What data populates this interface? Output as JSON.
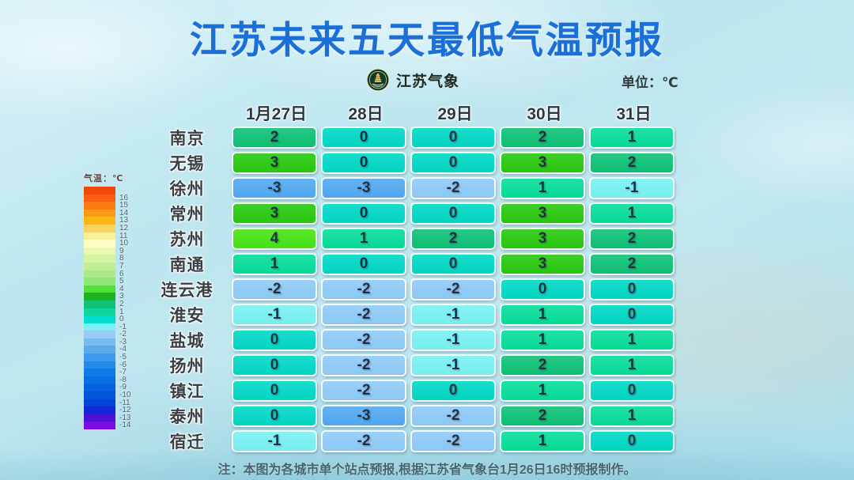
{
  "title": "江苏未来五天最低气温预报",
  "brand": {
    "logo_icon": "jiangsu-meteorology-emblem",
    "label": "江苏气象"
  },
  "unit_label": "单位：℃",
  "note": "注：本图为各城市单个站点预报,根据江苏省气象台1月26日16时预报制作。",
  "accent_colors": {
    "title_blue": "#1a6fd8",
    "header_text": "#2d3842",
    "cell_text": "#1d3142"
  },
  "chart_data": {
    "type": "heatmap",
    "title": "江苏未来五天最低气温预报",
    "unit": "℃",
    "columns": [
      "1月27日",
      "28日",
      "29日",
      "30日",
      "31日"
    ],
    "rows": [
      {
        "city": "南京",
        "values": [
          2,
          0,
          0,
          2,
          1
        ]
      },
      {
        "city": "无锡",
        "values": [
          3,
          0,
          0,
          3,
          2
        ]
      },
      {
        "city": "徐州",
        "values": [
          -3,
          -3,
          -2,
          1,
          -1
        ]
      },
      {
        "city": "常州",
        "values": [
          3,
          0,
          0,
          3,
          1
        ]
      },
      {
        "city": "苏州",
        "values": [
          4,
          1,
          2,
          3,
          2
        ]
      },
      {
        "city": "南通",
        "values": [
          1,
          0,
          0,
          3,
          2
        ]
      },
      {
        "city": "连云港",
        "values": [
          -2,
          -2,
          -2,
          0,
          0
        ]
      },
      {
        "city": "淮安",
        "values": [
          -1,
          -2,
          -1,
          1,
          0
        ]
      },
      {
        "city": "盐城",
        "values": [
          0,
          -2,
          -1,
          1,
          1
        ]
      },
      {
        "city": "扬州",
        "values": [
          0,
          -2,
          -1,
          2,
          1
        ]
      },
      {
        "city": "镇江",
        "values": [
          0,
          -2,
          0,
          1,
          0
        ]
      },
      {
        "city": "泰州",
        "values": [
          0,
          -3,
          -2,
          2,
          1
        ]
      },
      {
        "city": "宿迁",
        "values": [
          -1,
          -2,
          -2,
          1,
          0
        ]
      }
    ],
    "value_colors": {
      "4": "#46e414",
      "3": "#28c90f",
      "2": "#0dc176",
      "1": "#06dd99",
      "0": "#01d8c6",
      "-1": "#79f1f3",
      "-2": "#8ecaf7",
      "-3": "#52a9f2"
    },
    "legend": {
      "title": "气温：℃",
      "entries": [
        {
          "label": "",
          "color": "#f3480c"
        },
        {
          "label": "16",
          "color": "#fa5f0f"
        },
        {
          "label": "15",
          "color": "#fc7b12"
        },
        {
          "label": "14",
          "color": "#fd9a16"
        },
        {
          "label": "13",
          "color": "#fdb513"
        },
        {
          "label": "12",
          "color": "#f9d35f"
        },
        {
          "label": "11",
          "color": "#f8ef96"
        },
        {
          "label": "10",
          "color": "#fbfdc2"
        },
        {
          "label": "9",
          "color": "#eaf8b2"
        },
        {
          "label": "8",
          "color": "#d7f3a4"
        },
        {
          "label": "7",
          "color": "#c1ee94"
        },
        {
          "label": "6",
          "color": "#a9ea86"
        },
        {
          "label": "5",
          "color": "#8fe676"
        },
        {
          "label": "4",
          "color": "#4fe136"
        },
        {
          "label": "3",
          "color": "#1fb41f"
        },
        {
          "label": "2",
          "color": "#12c274"
        },
        {
          "label": "1",
          "color": "#0cd69c"
        },
        {
          "label": "0",
          "color": "#00dcd0"
        },
        {
          "label": "-1",
          "color": "#7deff4"
        },
        {
          "label": "-2",
          "color": "#97cdf4"
        },
        {
          "label": "-3",
          "color": "#7abaf1"
        },
        {
          "label": "-4",
          "color": "#5caaee"
        },
        {
          "label": "-5",
          "color": "#3e9aec"
        },
        {
          "label": "-6",
          "color": "#2589e9"
        },
        {
          "label": "-7",
          "color": "#0f7ce6"
        },
        {
          "label": "-8",
          "color": "#0870e3"
        },
        {
          "label": "-9",
          "color": "#0462e0"
        },
        {
          "label": "-10",
          "color": "#0353dd"
        },
        {
          "label": "-11",
          "color": "#0243da"
        },
        {
          "label": "-12",
          "color": "#1227d6"
        },
        {
          "label": "-13",
          "color": "#4a14d2"
        },
        {
          "label": "-14",
          "color": "#7d0be4"
        }
      ]
    }
  }
}
